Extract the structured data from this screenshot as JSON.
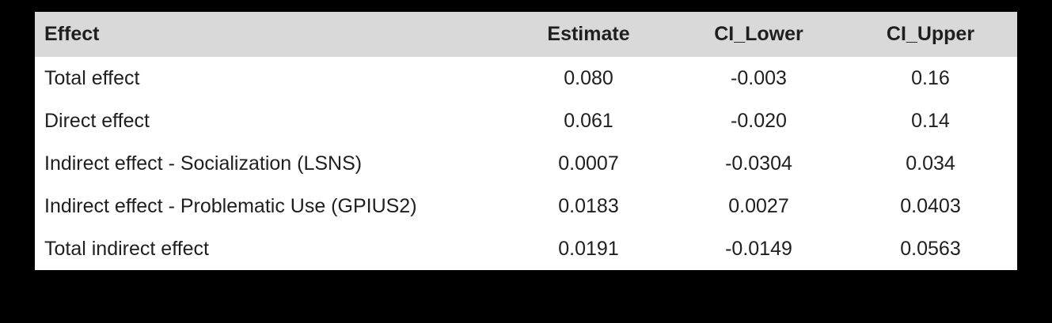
{
  "colors": {
    "page_background": "#000000",
    "table_background": "#ffffff",
    "header_background": "#d9d9d9",
    "text": "#1f1f1f"
  },
  "table": {
    "columns": {
      "effect": "Effect",
      "estimate": "Estimate",
      "ci_lower": "CI_Lower",
      "ci_upper": "CI_Upper"
    },
    "rows": [
      {
        "effect": "Total effect",
        "estimate": "0.080",
        "ci_lower": "-0.003",
        "ci_upper": "0.16"
      },
      {
        "effect": "Direct effect",
        "estimate": "0.061",
        "ci_lower": "-0.020",
        "ci_upper": "0.14"
      },
      {
        "effect": "Indirect effect - Socialization (LSNS)",
        "estimate": "0.0007",
        "ci_lower": "-0.0304",
        "ci_upper": "0.034"
      },
      {
        "effect": "Indirect effect - Problematic Use (GPIUS2)",
        "estimate": "0.0183",
        "ci_lower": "0.0027",
        "ci_upper": "0.0403"
      },
      {
        "effect": "Total indirect effect",
        "estimate": "0.0191",
        "ci_lower": "-0.0149",
        "ci_upper": "0.0563"
      }
    ]
  },
  "chart_data": {
    "type": "table",
    "title": "",
    "columns": [
      "Effect",
      "Estimate",
      "CI_Lower",
      "CI_Upper"
    ],
    "rows": [
      [
        "Total effect",
        0.08,
        -0.003,
        0.16
      ],
      [
        "Direct effect",
        0.061,
        -0.02,
        0.14
      ],
      [
        "Indirect effect - Socialization (LSNS)",
        0.0007,
        -0.0304,
        0.034
      ],
      [
        "Indirect effect - Problematic Use (GPIUS2)",
        0.0183,
        0.0027,
        0.0403
      ],
      [
        "Total indirect effect",
        0.0191,
        -0.0149,
        0.0563
      ]
    ]
  }
}
